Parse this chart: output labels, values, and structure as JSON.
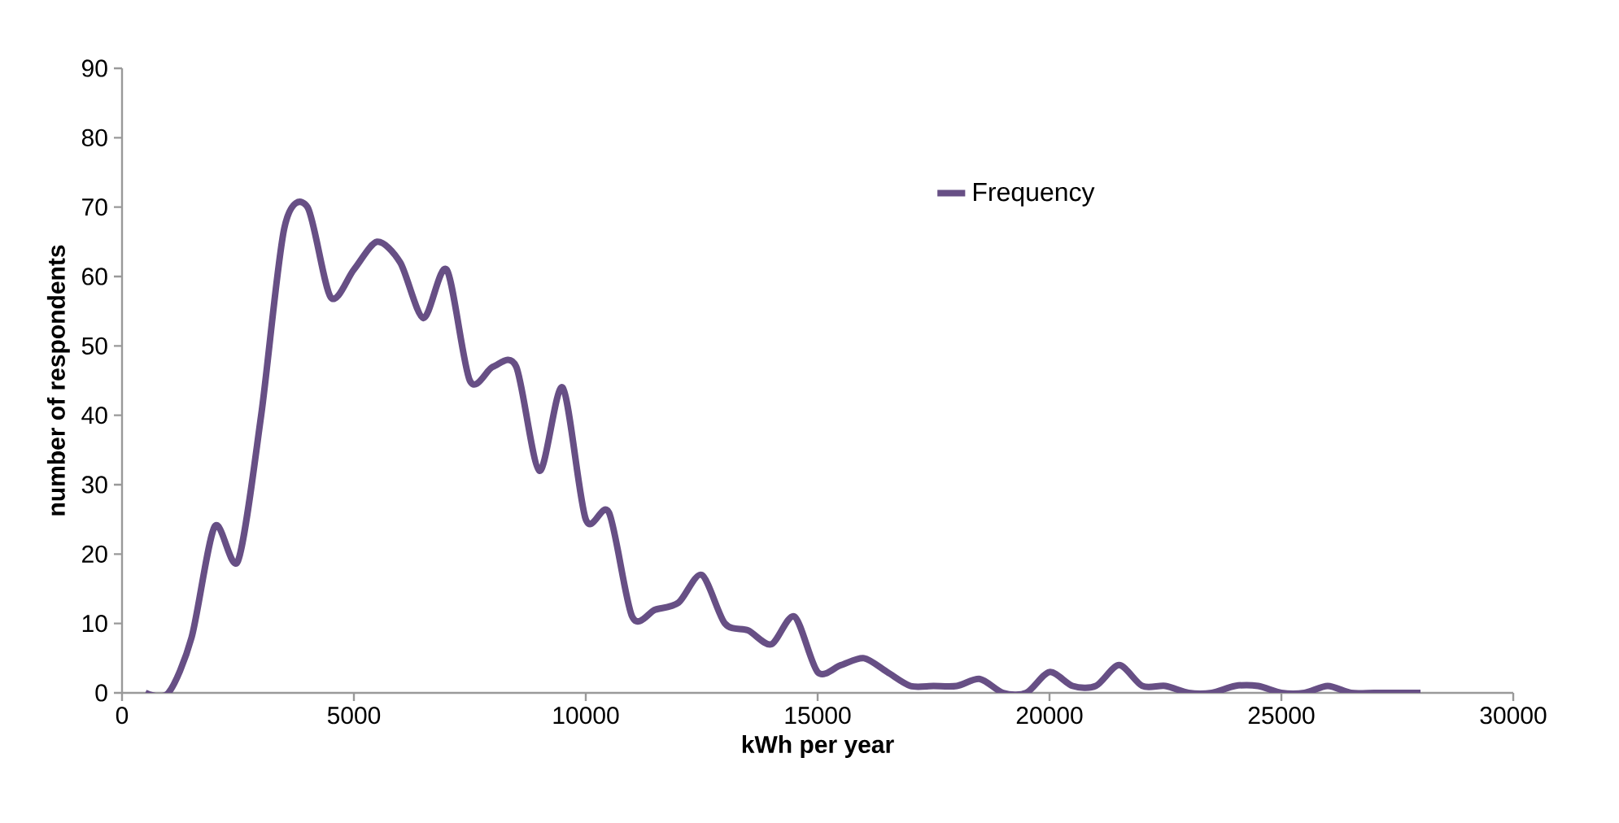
{
  "chart_data": {
    "type": "line",
    "xlabel": "kWh per year",
    "ylabel": "number of respondents",
    "xlim": [
      0,
      30000
    ],
    "ylim": [
      0,
      90
    ],
    "xticks": [
      0,
      5000,
      10000,
      15000,
      20000,
      25000,
      30000
    ],
    "yticks": [
      0,
      10,
      20,
      30,
      40,
      50,
      60,
      70,
      80,
      90
    ],
    "legend": "top right",
    "grid": false,
    "marker": "none",
    "line_style": "solid",
    "x": [
      500,
      1000,
      1500,
      2000,
      2500,
      3000,
      3500,
      4000,
      4500,
      5000,
      5500,
      6000,
      6500,
      7000,
      7500,
      8000,
      8500,
      9000,
      9500,
      10000,
      10500,
      11000,
      11500,
      12000,
      12500,
      13000,
      13500,
      14000,
      14500,
      15000,
      15500,
      16000,
      16500,
      17000,
      17500,
      18000,
      18500,
      19000,
      19500,
      20000,
      20500,
      21000,
      21500,
      22000,
      22500,
      23000,
      23500,
      24000,
      24500,
      25000,
      25500,
      26000,
      26500,
      27000,
      27500,
      28000
    ],
    "series": [
      {
        "name": "Frequency",
        "color": "#674f85",
        "values": [
          0,
          0,
          8,
          24,
          19,
          40,
          67,
          70,
          57,
          61,
          65,
          62,
          54,
          61,
          45,
          47,
          47,
          32,
          44,
          25,
          26,
          11,
          12,
          13,
          17,
          10,
          9,
          7,
          11,
          3,
          4,
          5,
          3,
          1,
          1,
          1,
          2,
          0,
          0,
          3,
          1,
          1,
          4,
          1,
          1,
          0,
          0,
          1,
          1,
          0,
          0,
          1,
          0,
          0,
          0,
          0
        ]
      }
    ]
  }
}
